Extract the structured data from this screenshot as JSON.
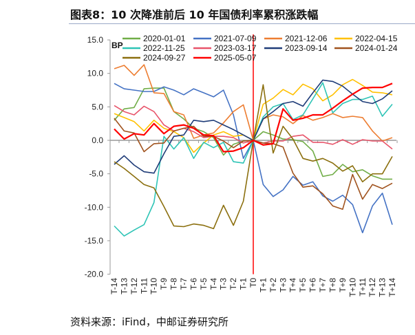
{
  "title": "图表8：10 次降准前后 10 年国债利率累积涨跌幅",
  "source": "资料来源：iFind，中邮证券研究所",
  "chart_data": {
    "type": "line",
    "title": "图表8：10 次降准前后 10 年国债利率累积涨跌幅",
    "ylabel": "BP",
    "xlabel": "",
    "ylim": [
      -20,
      15
    ],
    "yticks": [
      "15.0",
      "10.0",
      "5.0",
      "0.0",
      "-5.0",
      "-10.0",
      "-15.0",
      "-20.0"
    ],
    "ytick_values": [
      15,
      10,
      5,
      0,
      -5,
      -10,
      -15,
      -20
    ],
    "categories": [
      "T-14",
      "T-13",
      "T-12",
      "T-11",
      "T-10",
      "T-9",
      "T-8",
      "T-7",
      "T-6",
      "T-5",
      "T-4",
      "T-3",
      "T-2",
      "T-1",
      "T0",
      "T+1",
      "T+2",
      "T+3",
      "T+4",
      "T+5",
      "T+6",
      "T+7",
      "T+8",
      "T+9",
      "T+10",
      "T+11",
      "T+12",
      "T+13",
      "T+14"
    ],
    "event_marker": "T0",
    "legend_position": "top",
    "series": [
      {
        "name": "2020-01-01",
        "color": "#70ad47",
        "values": [
          3.0,
          4.7,
          4.9,
          7.7,
          7.8,
          7.8,
          4.3,
          3.2,
          1.8,
          1.3,
          0.4,
          -2.2,
          -0.6,
          -0.1,
          0,
          1.3,
          0.8,
          0.2,
          0.1,
          -0.2,
          -1.6,
          -5.4,
          -5.1,
          -3.6,
          -4.7,
          -4.4,
          -5.3,
          -5.8,
          -5.8
        ]
      },
      {
        "name": "2021-07-09",
        "color": "#4472c4",
        "values": [
          8.5,
          7.7,
          7.5,
          7.3,
          7.3,
          8.0,
          7.5,
          6.8,
          7.7,
          7.1,
          6.5,
          7.5,
          3.8,
          -2.7,
          0,
          -6.6,
          -8.4,
          -7.4,
          -5.4,
          -6.7,
          -6.2,
          -8.3,
          -9.1,
          -8.2,
          -9.6,
          -13.8,
          -9.8,
          -7.9,
          -12.6
        ]
      },
      {
        "name": "2021-12-06",
        "color": "#ed7d31",
        "values": [
          10.7,
          11.2,
          9.7,
          11.3,
          7.1,
          7.0,
          4.3,
          3.8,
          0.3,
          0.8,
          1.1,
          2.6,
          4.3,
          5.3,
          0,
          3.2,
          3.8,
          3.5,
          2.5,
          3.7,
          3.0,
          3.4,
          4.0,
          3.4,
          3.6,
          3.4,
          1.4,
          -0.1,
          0.4
        ]
      },
      {
        "name": "2022-04-15",
        "color": "#ffc000",
        "values": [
          4.0,
          3.4,
          2.8,
          1.4,
          3.0,
          1.8,
          1.3,
          0.4,
          -1.8,
          -0.4,
          0.8,
          1.3,
          0.6,
          0.8,
          0,
          5.4,
          6.3,
          7.6,
          6.8,
          8.4,
          7.7,
          5.9,
          6.8,
          8.3,
          9.1,
          8.2,
          7.2,
          7.1,
          6.8
        ]
      },
      {
        "name": "2022-11-25",
        "color": "#2ec4b6",
        "values": [
          -12.8,
          -14.3,
          -13.4,
          -12.6,
          -9.3,
          0.6,
          -1.3,
          0.4,
          -2.7,
          -0.3,
          -1.1,
          -0.3,
          -3.2,
          -3.4,
          0,
          3.5,
          5.0,
          5.5,
          3.1,
          3.8,
          6.2,
          8.6,
          4.1,
          5.5,
          6.1,
          6.1,
          6.6,
          3.6,
          5.4
        ]
      },
      {
        "name": "2023-03-17",
        "color": "#e8546a",
        "values": [
          5.2,
          4.3,
          3.8,
          5.1,
          4.3,
          2.3,
          1.4,
          1.8,
          1.3,
          0.4,
          0.6,
          0.6,
          0.4,
          -0.4,
          0,
          -0.4,
          -0.1,
          -0.1,
          0.6,
          0.8,
          -0.3,
          -0.3,
          -0.6,
          0.1,
          -0.6,
          0.1,
          -0.1,
          -0.1,
          -1.3
        ]
      },
      {
        "name": "2023-09-14",
        "color": "#1f3c78",
        "values": [
          -3.6,
          -2.3,
          -3.7,
          -4.7,
          -4.9,
          -2.0,
          0.6,
          0.8,
          3.0,
          2.8,
          3.0,
          2.3,
          1.6,
          0.8,
          0,
          3.2,
          4.3,
          5.5,
          5.8,
          5.1,
          7.1,
          9.0,
          8.8,
          8.1,
          6.9,
          5.8,
          5.5,
          6.2,
          7.4
        ]
      },
      {
        "name": "2024-01-24",
        "color": "#a0521d",
        "values": [
          3.3,
          1.4,
          1.1,
          -1.7,
          -0.5,
          -0.4,
          1.4,
          1.8,
          2.1,
          0.6,
          0.6,
          -0.1,
          -1.1,
          -0.1,
          0,
          -0.4,
          -0.5,
          -1.0,
          -4.9,
          -7.0,
          -6.8,
          -8.0,
          -9.8,
          -10.3,
          -5.1,
          -8.8,
          -6.6,
          -7.2,
          -6.4
        ]
      },
      {
        "name": "2024-09-27",
        "color": "#8b6f0e",
        "values": [
          -3.2,
          -4.2,
          -5.4,
          -6.6,
          -7.1,
          -9.9,
          -12.8,
          -12.9,
          -12.5,
          -12.7,
          -13.2,
          -9.7,
          -12.7,
          -9.1,
          0,
          8.3,
          -1.9,
          2.1,
          0.2,
          -2.7,
          -3.1,
          -2.7,
          -3.4,
          -4.6,
          -3.8,
          -6.2,
          -5.0,
          -5.0,
          -2.4
        ]
      },
      {
        "name": "2025-05-07",
        "color": "#ff0000",
        "values": [
          1.7,
          0.2,
          1.0,
          0.8,
          2.5,
          1.0,
          2.1,
          2.3,
          1.8,
          0.8,
          0.7,
          -1.7,
          -1.6,
          -1.1,
          0,
          -0.7,
          -0.5,
          4.7,
          3.0,
          3.3,
          3.8,
          3.8,
          4.8,
          5.9,
          6.9,
          7.8,
          7.9,
          7.9,
          8.5
        ]
      }
    ]
  }
}
